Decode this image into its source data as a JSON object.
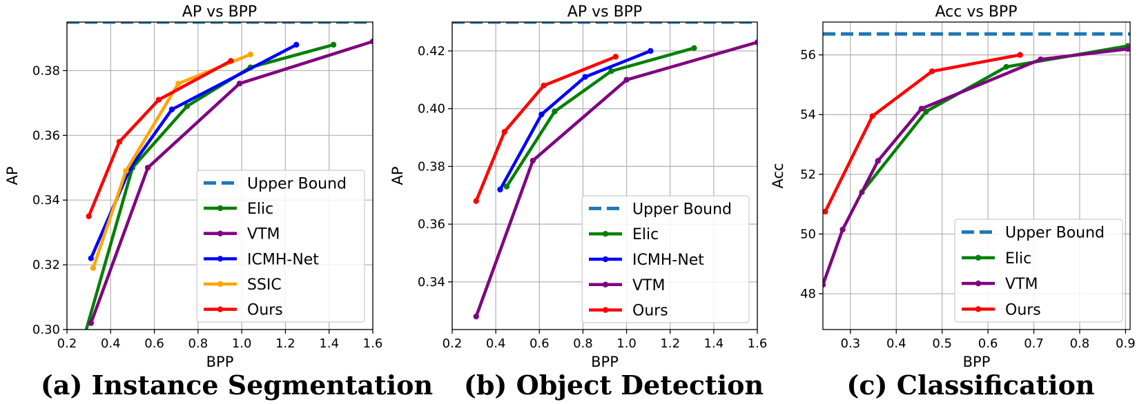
{
  "chart_data": [
    {
      "type": "line",
      "title": "AP vs BPP",
      "xlabel": "BPP",
      "ylabel": "AP",
      "caption": "(a) Instance Segmentation",
      "xlim": [
        0.2,
        1.6
      ],
      "ylim": [
        0.3,
        0.395
      ],
      "xticks": [
        0.2,
        0.4,
        0.6,
        0.8,
        1.0,
        1.2,
        1.4,
        1.6
      ],
      "xtick_labels": [
        "0.2",
        "0.4",
        "0.6",
        "0.8",
        "1.0",
        "1.2",
        "1.4",
        "1.6"
      ],
      "yticks": [
        0.3,
        0.32,
        0.34,
        0.36,
        0.38
      ],
      "ytick_labels": [
        "0.30",
        "0.32",
        "0.34",
        "0.36",
        "0.38"
      ],
      "grid": true,
      "legend_position": "lower-right",
      "upper_bound": 0.395,
      "series": [
        {
          "name": "Upper Bound",
          "color": "#1f77b4",
          "dashed": true,
          "x": [
            0.2,
            1.6
          ],
          "y": [
            0.395,
            0.395
          ]
        },
        {
          "name": "Elic",
          "color": "#008000",
          "x": [
            0.28,
            0.5,
            0.75,
            1.04,
            1.42
          ],
          "y": [
            0.298,
            0.35,
            0.369,
            0.381,
            0.388
          ]
        },
        {
          "name": "VTM",
          "color": "#800080",
          "x": [
            0.31,
            0.57,
            0.99,
            1.6
          ],
          "y": [
            0.302,
            0.35,
            0.376,
            0.389
          ]
        },
        {
          "name": "ICMH-Net",
          "color": "#0000ff",
          "x": [
            0.31,
            0.49,
            0.68,
            1.25
          ],
          "y": [
            0.322,
            0.35,
            0.368,
            0.388
          ]
        },
        {
          "name": "SSIC",
          "color": "#ffa500",
          "x": [
            0.32,
            0.47,
            0.71,
            1.04
          ],
          "y": [
            0.319,
            0.349,
            0.376,
            0.385
          ]
        },
        {
          "name": "Ours",
          "color": "#ff0000",
          "x": [
            0.3,
            0.44,
            0.62,
            0.95
          ],
          "y": [
            0.335,
            0.358,
            0.371,
            0.383
          ]
        }
      ]
    },
    {
      "type": "line",
      "title": "AP vs BPP",
      "xlabel": "BPP",
      "ylabel": "AP",
      "caption": "(b) Object Detection",
      "xlim": [
        0.2,
        1.6
      ],
      "ylim": [
        0.3235,
        0.43
      ],
      "xticks": [
        0.2,
        0.4,
        0.6,
        0.8,
        1.0,
        1.2,
        1.4,
        1.6
      ],
      "xtick_labels": [
        "0.2",
        "0.4",
        "0.6",
        "0.8",
        "1.0",
        "1.2",
        "1.4",
        "1.6"
      ],
      "yticks": [
        0.34,
        0.36,
        0.38,
        0.4,
        0.42
      ],
      "ytick_labels": [
        "0.34",
        "0.36",
        "0.38",
        "0.40",
        "0.42"
      ],
      "grid": true,
      "legend_position": "lower-right",
      "upper_bound": 0.43,
      "series": [
        {
          "name": "Upper Bound",
          "color": "#1f77b4",
          "dashed": true,
          "x": [
            0.2,
            1.6
          ],
          "y": [
            0.43,
            0.43
          ]
        },
        {
          "name": "Elic",
          "color": "#008000",
          "x": [
            0.45,
            0.67,
            0.93,
            1.31
          ],
          "y": [
            0.373,
            0.399,
            0.413,
            0.421
          ]
        },
        {
          "name": "ICMH-Net",
          "color": "#0000ff",
          "x": [
            0.42,
            0.61,
            0.81,
            1.11
          ],
          "y": [
            0.372,
            0.398,
            0.411,
            0.42
          ]
        },
        {
          "name": "VTM",
          "color": "#800080",
          "x": [
            0.31,
            0.57,
            1.0,
            1.6
          ],
          "y": [
            0.328,
            0.382,
            0.41,
            0.423
          ]
        },
        {
          "name": "Ours",
          "color": "#ff0000",
          "x": [
            0.31,
            0.44,
            0.62,
            0.95
          ],
          "y": [
            0.368,
            0.392,
            0.408,
            0.418
          ]
        }
      ]
    },
    {
      "type": "line",
      "title": "Acc vs BPP",
      "xlabel": "BPP",
      "ylabel": "Acc",
      "caption": "(c) Classification",
      "xlim": [
        0.24,
        0.91
      ],
      "ylim": [
        46.8,
        57.1
      ],
      "xticks": [
        0.3,
        0.4,
        0.5,
        0.6,
        0.7,
        0.8,
        0.9
      ],
      "xtick_labels": [
        "0.3",
        "0.4",
        "0.5",
        "0.6",
        "0.7",
        "0.8",
        "0.9"
      ],
      "yticks": [
        48,
        50,
        52,
        54,
        56
      ],
      "ytick_labels": [
        "48",
        "50",
        "52",
        "54",
        "56"
      ],
      "grid": true,
      "legend_position": "lower-right",
      "upper_bound": 56.7,
      "series": [
        {
          "name": "Upper Bound",
          "color": "#1f77b4",
          "dashed": true,
          "x": [
            0.24,
            0.91
          ],
          "y": [
            56.7,
            56.7
          ]
        },
        {
          "name": "Elic",
          "color": "#008000",
          "x": [
            0.325,
            0.465,
            0.64,
            0.905
          ],
          "y": [
            51.4,
            54.1,
            55.6,
            56.3
          ]
        },
        {
          "name": "VTM",
          "color": "#800080",
          "x": [
            0.24,
            0.283,
            0.36,
            0.455,
            0.715,
            0.905
          ],
          "y": [
            48.3,
            50.15,
            52.45,
            54.2,
            55.85,
            56.2
          ]
        },
        {
          "name": "Ours",
          "color": "#ff0000",
          "x": [
            0.245,
            0.348,
            0.478,
            0.67
          ],
          "y": [
            50.75,
            53.95,
            55.45,
            56.0
          ]
        }
      ]
    }
  ]
}
